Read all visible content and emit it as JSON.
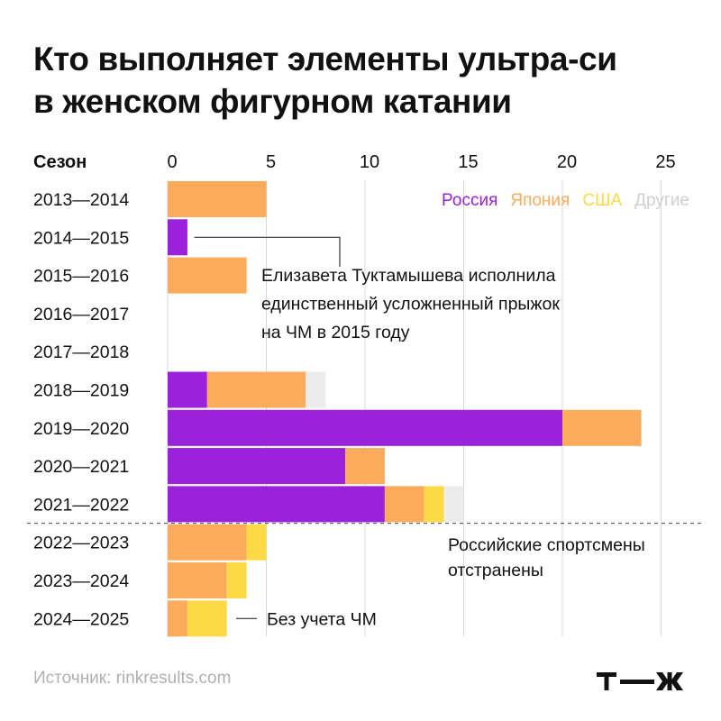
{
  "title_lines": [
    "Кто выполняет элементы ультра-си",
    "в женском фигурном катании"
  ],
  "source": "Источник: rinkresults.com",
  "logo": "т—ж",
  "colors": {
    "russia": "#9b21db",
    "japan": "#fbab5b",
    "usa": "#fdd946",
    "other": "#ececec",
    "text": "#111111",
    "muted": "#b0b0b0",
    "grid": "#d9d9d9"
  },
  "chart_data": {
    "type": "bar",
    "orientation": "horizontal",
    "stacked": true,
    "category_header": "Сезон",
    "xlim": [
      0,
      25
    ],
    "xticks": [
      0,
      5,
      10,
      15,
      20,
      25
    ],
    "categories": [
      "2013—2014",
      "2014—2015",
      "2015—2016",
      "2016—2017",
      "2017—2018",
      "2018—2019",
      "2019—2020",
      "2020—2021",
      "2021—2022",
      "2022—2023",
      "2023—2024",
      "2024—2025"
    ],
    "series": [
      {
        "name": "Россия",
        "color": "#9b21db",
        "values": [
          0,
          1,
          0,
          0,
          0,
          2,
          20,
          9,
          11,
          0,
          0,
          0
        ]
      },
      {
        "name": "Япония",
        "color": "#fbab5b",
        "values": [
          5,
          0,
          4,
          0,
          0,
          5,
          4,
          2,
          2,
          4,
          3,
          1
        ]
      },
      {
        "name": "США",
        "color": "#fdd946",
        "values": [
          0,
          0,
          0,
          0,
          0,
          0,
          0,
          0,
          1,
          1,
          1,
          2
        ]
      },
      {
        "name": "Другие",
        "color": "#ececec",
        "values": [
          0,
          0,
          0,
          0,
          0,
          1,
          0,
          0,
          1,
          0,
          0,
          0
        ]
      }
    ],
    "legend_position": "top-right",
    "annotations": [
      {
        "category": "2014—2015",
        "lines": [
          "Елизавета Туктамышева исполнила",
          "единственный усложненный прыжок",
          "на ЧМ в 2015 году"
        ]
      },
      {
        "category": "2022—2023",
        "lines": [
          "Российские спортсмены",
          "отстранены"
        ]
      },
      {
        "category": "2024—2025",
        "lines": [
          "Без учета ЧМ"
        ]
      }
    ],
    "separator_after": "2021—2022",
    "grid": true
  }
}
